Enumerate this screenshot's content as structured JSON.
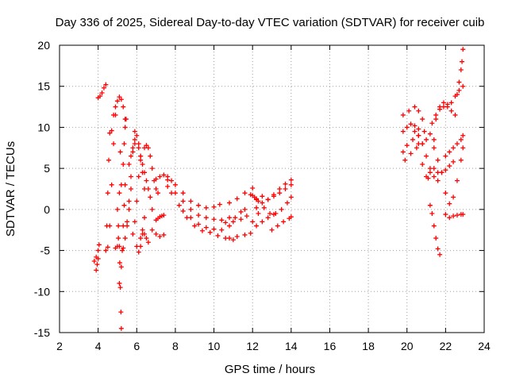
{
  "chart_data": {
    "type": "scatter",
    "title": "Day 336 of 2025, Sidereal Day-to-day VTEC variation (SDTVAR) for receiver cuib",
    "xlabel": "GPS time / hours",
    "ylabel": "SDTVAR / TECUs",
    "xlim": [
      2,
      24
    ],
    "ylim": [
      -15,
      20
    ],
    "xticks": [
      2,
      4,
      6,
      8,
      10,
      12,
      14,
      16,
      18,
      20,
      22,
      24
    ],
    "yticks": [
      -15,
      -10,
      -5,
      0,
      5,
      10,
      15,
      20
    ],
    "grid": true,
    "marker": "+",
    "color": "#ff0000",
    "series": [
      {
        "name": "track-01",
        "x": [
          3.8,
          3.9,
          4.0,
          4.05
        ],
        "y": [
          -6.3,
          -5.8,
          -5.0,
          -4.3
        ]
      },
      {
        "name": "track-02",
        "x": [
          3.9,
          3.95,
          4.0
        ],
        "y": [
          -7.4,
          -6.7,
          -6.0
        ]
      },
      {
        "name": "track-03",
        "x": [
          4.0,
          4.1,
          4.2,
          4.3,
          4.4
        ],
        "y": [
          13.6,
          13.8,
          14.2,
          14.8,
          15.2
        ]
      },
      {
        "name": "track-04",
        "x": [
          4.4,
          4.45,
          4.5,
          4.55,
          4.6,
          4.7
        ],
        "y": [
          -5.0,
          -2.0,
          2.0,
          6.0,
          9.3,
          9.6
        ]
      },
      {
        "name": "track-05",
        "x": [
          4.5,
          4.6,
          4.7,
          4.8,
          4.9
        ],
        "y": [
          -4.6,
          -2.0,
          3.0,
          8.0,
          11.5
        ]
      },
      {
        "name": "track-06",
        "x": [
          4.8,
          4.9,
          5.0,
          5.1,
          5.2,
          5.3,
          5.4
        ],
        "y": [
          11.5,
          12.5,
          13.2,
          13.7,
          13.4,
          12.5,
          11.0
        ]
      },
      {
        "name": "track-07",
        "x": [
          4.9,
          5.0,
          5.05,
          5.1,
          5.15
        ],
        "y": [
          -4.7,
          -4.5,
          -3.5,
          2.0,
          7.0
        ]
      },
      {
        "name": "track-08",
        "x": [
          5.0,
          5.05,
          5.1,
          5.12,
          5.15,
          5.18,
          5.2
        ],
        "y": [
          0.0,
          -2.0,
          -4.5,
          -6.5,
          -9.5,
          -12.5,
          -14.5
        ]
      },
      {
        "name": "track-09",
        "x": [
          5.1,
          5.2,
          5.25,
          5.3,
          5.35,
          5.4
        ],
        "y": [
          -9.0,
          -7.0,
          -5.0,
          -2.0,
          0.5,
          3.0
        ]
      },
      {
        "name": "track-10",
        "x": [
          5.2,
          5.3,
          5.35,
          5.4,
          5.45
        ],
        "y": [
          3.0,
          5.5,
          8.0,
          10.0,
          11.0
        ]
      },
      {
        "name": "track-11",
        "x": [
          5.3,
          5.4,
          5.5,
          5.6,
          5.7
        ],
        "y": [
          -4.7,
          -3.5,
          -2.0,
          0.0,
          2.5
        ]
      },
      {
        "name": "track-12",
        "x": [
          5.5,
          5.6,
          5.7,
          5.8,
          5.9
        ],
        "y": [
          -1.5,
          1.0,
          4.0,
          7.0,
          9.5
        ]
      },
      {
        "name": "track-13",
        "x": [
          5.6,
          5.7,
          5.8,
          5.9
        ],
        "y": [
          5.5,
          6.5,
          7.5,
          8.0
        ]
      },
      {
        "name": "track-14",
        "x": [
          5.8,
          5.9,
          6.0,
          6.1,
          6.2
        ],
        "y": [
          -3.0,
          -1.5,
          1.0,
          4.0,
          6.0
        ]
      },
      {
        "name": "track-15",
        "x": [
          5.9,
          6.0,
          6.1,
          6.2,
          6.3,
          6.4
        ],
        "y": [
          8.5,
          9.0,
          8.0,
          6.5,
          4.5,
          2.5
        ]
      },
      {
        "name": "track-16",
        "x": [
          6.0,
          6.1,
          6.2,
          6.3,
          6.4
        ],
        "y": [
          -4.5,
          -5.2,
          -4.5,
          -3.0,
          -1.0
        ]
      },
      {
        "name": "track-17",
        "x": [
          6.1,
          6.2,
          6.3,
          6.4,
          6.5,
          6.6,
          6.7,
          6.8
        ],
        "y": [
          7.5,
          6.5,
          5.5,
          4.5,
          3.5,
          2.5,
          1.5,
          0.0
        ]
      },
      {
        "name": "track-18",
        "x": [
          6.2,
          6.3,
          6.4,
          6.5,
          6.6
        ],
        "y": [
          -3.5,
          -2.5,
          -3.0,
          -3.5,
          -4.0
        ]
      },
      {
        "name": "track-19",
        "x": [
          6.4,
          6.5,
          6.6,
          6.7,
          6.8,
          6.9,
          7.0,
          7.1
        ],
        "y": [
          7.5,
          7.8,
          7.5,
          6.5,
          5.0,
          3.5,
          2.5,
          2.0
        ]
      },
      {
        "name": "track-20",
        "x": [
          6.8,
          7.0,
          7.2,
          7.4
        ],
        "y": [
          -2.5,
          -3.0,
          -3.3,
          -3.1
        ]
      },
      {
        "name": "track-21",
        "x": [
          7.0,
          7.1,
          7.2,
          7.3,
          7.4
        ],
        "y": [
          -1.3,
          -1.1,
          -0.9,
          -0.8,
          -0.7
        ]
      },
      {
        "name": "track-22",
        "x": [
          7.0,
          7.2,
          7.4,
          7.6,
          7.8
        ],
        "y": [
          3.7,
          4.0,
          4.2,
          4.0,
          3.5
        ]
      },
      {
        "name": "track-23",
        "x": [
          7.6,
          8.0,
          8.4,
          8.8,
          9.2,
          9.6,
          10.0,
          10.3
        ],
        "y": [
          3.6,
          3.0,
          2.0,
          1.0,
          0.5,
          0.2,
          0.3,
          0.6
        ]
      },
      {
        "name": "track-24",
        "x": [
          7.6,
          8.0,
          8.4,
          8.8,
          9.2,
          9.6,
          10.0,
          10.4,
          10.8
        ],
        "y": [
          2.8,
          2.0,
          1.0,
          0.0,
          -0.7,
          -1.0,
          -1.2,
          -1.3,
          -1.0
        ]
      },
      {
        "name": "track-25",
        "x": [
          7.8,
          8.2,
          8.6,
          9.0,
          9.4,
          9.8,
          10.2,
          10.6,
          11.0
        ],
        "y": [
          2.0,
          0.5,
          -1.0,
          -2.0,
          -2.6,
          -2.8,
          -3.2,
          -3.5,
          -3.7
        ]
      },
      {
        "name": "track-26",
        "x": [
          8.4,
          8.8,
          9.2,
          9.6,
          10.0,
          10.4
        ],
        "y": [
          -0.2,
          -1.0,
          -1.8,
          -2.2,
          -2.4,
          -2.5
        ]
      },
      {
        "name": "track-27",
        "x": [
          10.6,
          11.0,
          11.4,
          11.7
        ],
        "y": [
          -1.6,
          -1.5,
          -1.2,
          -0.8
        ]
      },
      {
        "name": "track-28",
        "x": [
          10.8,
          11.1,
          11.4,
          11.6
        ],
        "y": [
          -2.0,
          -1.0,
          -0.3,
          0.0
        ]
      },
      {
        "name": "track-29",
        "x": [
          10.8,
          11.2,
          11.6,
          12.0
        ],
        "y": [
          0.8,
          1.3,
          2.0,
          2.6
        ]
      },
      {
        "name": "track-30",
        "x": [
          10.8,
          11.2,
          11.6,
          11.9
        ],
        "y": [
          -3.5,
          -3.3,
          -3.1,
          -2.9
        ]
      },
      {
        "name": "track-31",
        "x": [
          11.9,
          12.0,
          12.1,
          12.2,
          12.3
        ],
        "y": [
          1.8,
          1.7,
          1.5,
          1.2,
          1.0
        ]
      },
      {
        "name": "track-32",
        "x": [
          12.2,
          12.5,
          12.8,
          13.1,
          13.4,
          13.7,
          14.0
        ],
        "y": [
          1.3,
          1.6,
          1.2,
          1.8,
          2.5,
          3.1,
          3.6
        ]
      },
      {
        "name": "track-33",
        "x": [
          12.2,
          12.5,
          12.8,
          13.1,
          13.4,
          13.7,
          14.0
        ],
        "y": [
          0.2,
          0.8,
          1.2,
          1.6,
          2.0,
          2.5,
          3.0
        ]
      },
      {
        "name": "track-34",
        "x": [
          12.0,
          12.3,
          12.6,
          12.9,
          13.2,
          13.5,
          13.8,
          14.0
        ],
        "y": [
          -1.5,
          -0.5,
          0.2,
          -0.5,
          -0.5,
          0.0,
          0.8,
          1.5
        ]
      },
      {
        "name": "track-35",
        "x": [
          12.2,
          12.5,
          12.8,
          13.1
        ],
        "y": [
          -2.0,
          -1.5,
          -1.0,
          -0.6
        ]
      },
      {
        "name": "track-36",
        "x": [
          13.0,
          13.3,
          13.6,
          13.9,
          14.0
        ],
        "y": [
          -2.5,
          -2.0,
          -1.5,
          -1.1,
          -0.9
        ]
      },
      {
        "name": "track-37",
        "x": [
          19.8,
          20.1,
          20.4,
          20.6,
          20.8
        ],
        "y": [
          11.5,
          12.0,
          12.5,
          12.0,
          11.0
        ]
      },
      {
        "name": "track-38",
        "x": [
          19.8,
          20.0,
          20.2,
          20.4,
          20.6
        ],
        "y": [
          9.5,
          10.0,
          10.4,
          10.2,
          9.8
        ]
      },
      {
        "name": "track-39",
        "x": [
          19.8,
          20.0,
          20.3,
          20.6,
          20.9,
          21.2,
          21.4
        ],
        "y": [
          7.0,
          7.8,
          8.5,
          9.0,
          9.5,
          9.2,
          8.5
        ]
      },
      {
        "name": "track-40",
        "x": [
          19.9,
          20.2,
          20.5,
          20.8,
          21.0
        ],
        "y": [
          6.0,
          6.8,
          7.5,
          8.0,
          8.5
        ]
      },
      {
        "name": "track-41",
        "x": [
          20.4,
          20.6,
          20.8,
          21.0,
          21.2,
          21.4,
          21.6
        ],
        "y": [
          9.5,
          9.0,
          8.0,
          6.5,
          5.0,
          4.0,
          3.5
        ]
      },
      {
        "name": "track-42",
        "x": [
          20.6,
          20.8,
          21.0,
          21.1,
          21.2
        ],
        "y": [
          8.0,
          5.5,
          4.0,
          3.8,
          4.5
        ]
      },
      {
        "name": "track-43",
        "x": [
          21.2,
          21.3,
          21.4,
          21.5,
          21.6,
          21.7
        ],
        "y": [
          0.5,
          -0.5,
          -2.0,
          -3.5,
          -4.8,
          -5.5
        ]
      },
      {
        "name": "track-44",
        "x": [
          21.3,
          21.5,
          21.7,
          21.9,
          22.1,
          22.3,
          22.5,
          22.7,
          22.9
        ],
        "y": [
          10.5,
          11.5,
          12.2,
          12.5,
          12.5,
          13.0,
          13.8,
          14.5,
          15.0
        ]
      },
      {
        "name": "track-45",
        "x": [
          21.5,
          21.7,
          21.9,
          22.1,
          22.3,
          22.5
        ],
        "y": [
          11.0,
          12.5,
          13.0,
          12.8,
          12.0,
          11.5
        ]
      },
      {
        "name": "track-46",
        "x": [
          21.4,
          21.6,
          21.8,
          22.0,
          22.2,
          22.4
        ],
        "y": [
          5.0,
          4.5,
          4.5,
          4.8,
          5.3,
          5.8
        ]
      },
      {
        "name": "track-47",
        "x": [
          21.4,
          21.6,
          21.8,
          22.0,
          22.2,
          22.4,
          22.6,
          22.8,
          22.9
        ],
        "y": [
          7.5,
          6.0,
          4.5,
          2.0,
          0.7,
          1.5,
          3.5,
          6.0,
          7.5
        ]
      },
      {
        "name": "track-48",
        "x": [
          22.0,
          22.2,
          22.4,
          22.6,
          22.8,
          22.9
        ],
        "y": [
          6.5,
          7.0,
          7.5,
          8.0,
          8.5,
          9.0
        ]
      },
      {
        "name": "track-49",
        "x": [
          22.0,
          22.2,
          22.4,
          22.6,
          22.8,
          22.9
        ],
        "y": [
          -0.6,
          -1.0,
          -0.8,
          -0.7,
          -0.6,
          -0.6
        ]
      },
      {
        "name": "track-50",
        "x": [
          22.6,
          22.7,
          22.8,
          22.85,
          22.9
        ],
        "y": [
          14.0,
          15.5,
          17.0,
          18.0,
          19.5
        ]
      }
    ]
  }
}
